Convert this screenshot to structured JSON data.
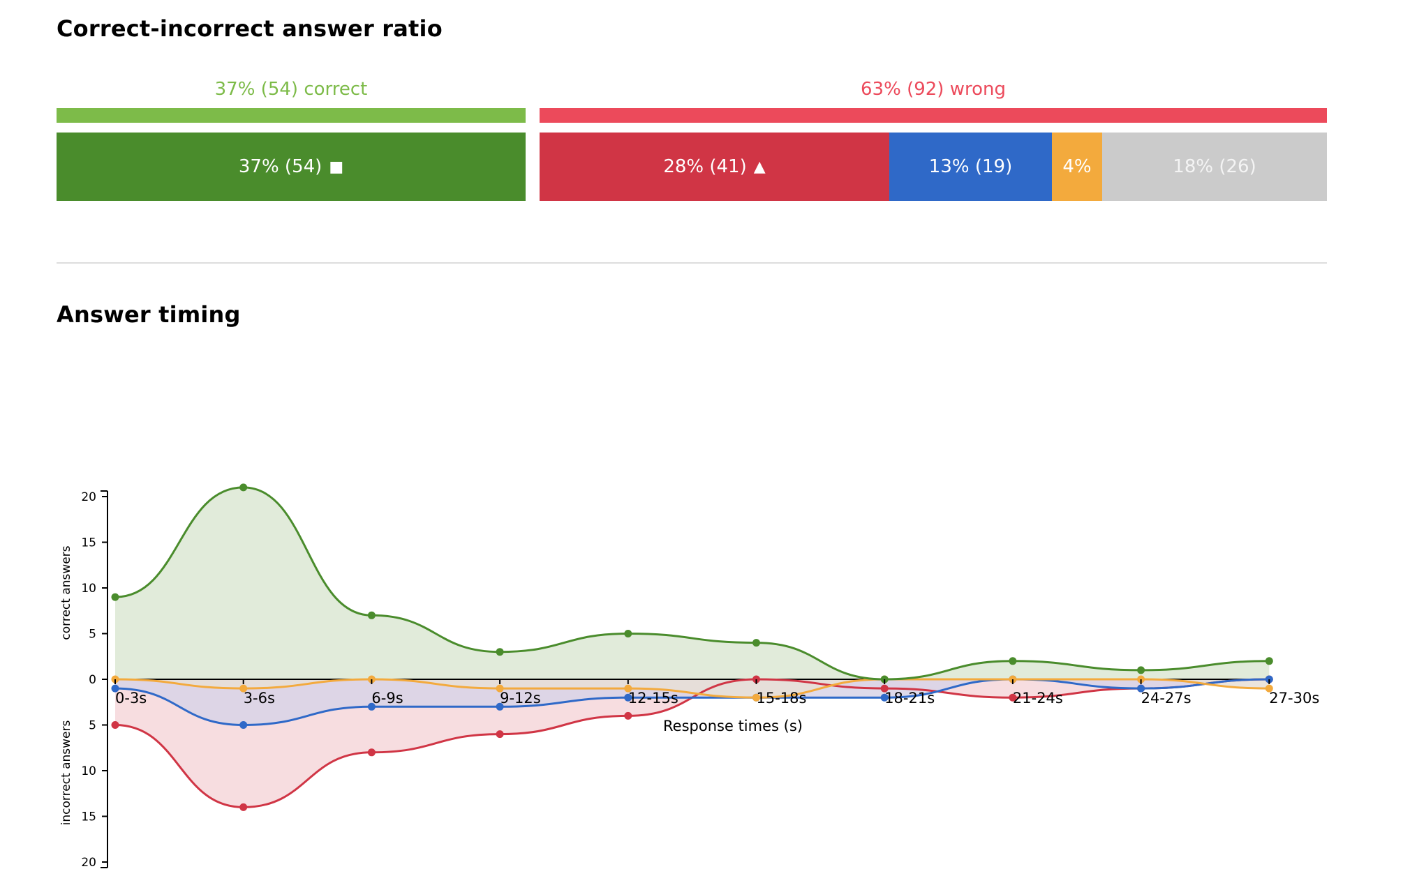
{
  "ratio": {
    "title": "Correct-incorrect answer ratio",
    "correct_caption": "37% (54) correct",
    "wrong_caption": "63% (92) wrong",
    "colors": {
      "correct_light": "#7dbb49",
      "wrong_light": "#ec4a5b"
    },
    "segments": [
      {
        "label": "37% (54)",
        "symbol": "■",
        "share": 0.37,
        "color": "#4a8c2c",
        "text_color": "#ffffff"
      },
      {
        "label": "28% (41)",
        "symbol": "▲",
        "share": 0.28,
        "color": "#d03545",
        "text_color": "#ffffff"
      },
      {
        "label": "13% (19)",
        "symbol": "",
        "share": 0.13,
        "color": "#2f69c8",
        "text_color": "#ffffff"
      },
      {
        "label": "4%",
        "symbol": "",
        "share": 0.04,
        "color": "#f3aa3d",
        "text_color": "#ffffff"
      },
      {
        "label": "18% (26)",
        "symbol": "",
        "share": 0.18,
        "color": "#cbcbcb",
        "text_color": "#f4f4f4"
      }
    ]
  },
  "timing": {
    "title": "Answer timing"
  },
  "chart_data": {
    "type": "area",
    "title": "Answer timing",
    "categories": [
      "0-3s",
      "3-6s",
      "6-9s",
      "9-12s",
      "12-15s",
      "15-18s",
      "18-21s",
      "21-24s",
      "24-27s",
      "27-30s"
    ],
    "xlabel": "Response times (s)",
    "ylabel_top": "correct answers",
    "ylabel_bottom": "incorrect answers",
    "ylim_top": [
      0,
      20
    ],
    "ylim_bottom": [
      0,
      20
    ],
    "yticks": [
      0,
      5,
      10,
      15,
      20
    ],
    "grid": false,
    "legend": "none",
    "series": [
      {
        "direction": "up",
        "color": "#4a8c2c",
        "fill": "#dce8d3",
        "values": [
          9,
          21,
          7,
          3,
          5,
          4,
          0,
          2,
          1,
          2
        ]
      },
      {
        "direction": "down",
        "color": "#d03545",
        "fill": "#f6d7db",
        "values": [
          5,
          14,
          8,
          6,
          4,
          0,
          1,
          2,
          1,
          0
        ]
      },
      {
        "direction": "down",
        "color": "#2f69c8",
        "fill": "#d8d4e6",
        "values": [
          1,
          5,
          3,
          3,
          2,
          2,
          2,
          0,
          1,
          0
        ]
      },
      {
        "direction": "down",
        "color": "#f3aa3d",
        "fill": "#e7dfd6",
        "values": [
          0,
          1,
          0,
          1,
          1,
          2,
          0,
          0,
          0,
          1
        ]
      }
    ]
  }
}
